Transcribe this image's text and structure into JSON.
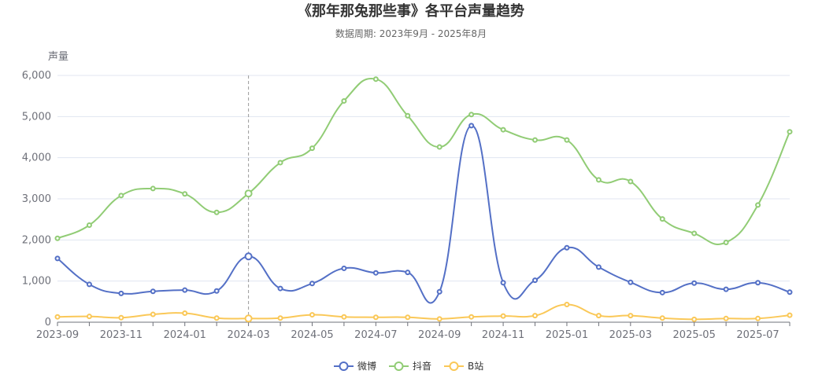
{
  "chart_data": {
    "type": "line",
    "title": "《那年那兔那些事》各平台声量趋势",
    "subtitle": "数据周期: 2023年9月 - 2025年8月",
    "ylabel": "声量",
    "xlabel": "",
    "ylim": [
      0,
      6000
    ],
    "yticks": [
      0,
      1000,
      2000,
      3000,
      4000,
      5000,
      6000
    ],
    "ytick_labels": [
      "0",
      "1,000",
      "2,000",
      "3,000",
      "4,000",
      "5,000",
      "6,000"
    ],
    "x": [
      "2023-09",
      "2023-10",
      "2023-11",
      "2023-12",
      "2024-01",
      "2024-02",
      "2024-03",
      "2024-04",
      "2024-05",
      "2024-06",
      "2024-07",
      "2024-08",
      "2024-09",
      "2024-10",
      "2024-11",
      "2024-12",
      "2025-01",
      "2025-02",
      "2025-03",
      "2025-04",
      "2025-05",
      "2025-06",
      "2025-07",
      "2025-08"
    ],
    "xtick_labels": [
      "2023-09",
      "2023-11",
      "2024-01",
      "2024-03",
      "2024-05",
      "2024-07",
      "2024-09",
      "2024-11",
      "2025-01",
      "2025-03",
      "2025-05",
      "2025-07"
    ],
    "grid": true,
    "legend_position": "bottom",
    "highlight_x": "2024-03",
    "series": [
      {
        "name": "微博",
        "color": "#5470c6",
        "values": [
          1550,
          920,
          700,
          750,
          780,
          760,
          1600,
          820,
          940,
          1310,
          1200,
          1210,
          740,
          4780,
          960,
          1020,
          1810,
          1340,
          970,
          720,
          950,
          800,
          960,
          730
        ]
      },
      {
        "name": "抖音",
        "color": "#91cc75",
        "values": [
          2040,
          2360,
          3080,
          3250,
          3120,
          2670,
          3130,
          3880,
          4230,
          5380,
          5910,
          5020,
          4260,
          5050,
          4680,
          4430,
          4430,
          3460,
          3420,
          2510,
          2160,
          1940,
          2850,
          4630
        ]
      },
      {
        "name": "B站",
        "color": "#fac858",
        "values": [
          130,
          140,
          110,
          190,
          220,
          100,
          90,
          100,
          180,
          130,
          120,
          120,
          80,
          130,
          150,
          160,
          430,
          160,
          160,
          100,
          70,
          90,
          90,
          170
        ]
      }
    ]
  }
}
